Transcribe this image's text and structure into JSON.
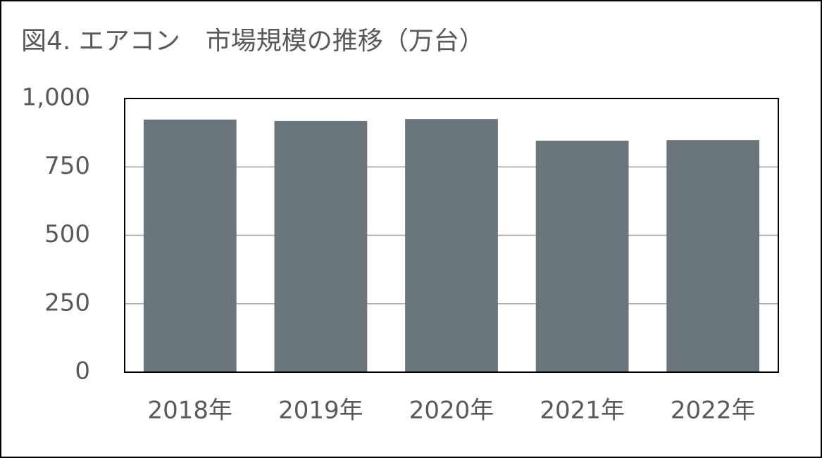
{
  "chart_data": {
    "type": "bar",
    "title": "図4. エアコン　市場規模の推移（万台）",
    "categories": [
      "2018年",
      "2019年",
      "2020年",
      "2021年",
      "2022年"
    ],
    "values": [
      923,
      918,
      925,
      846,
      848
    ],
    "color": "#6b757c",
    "ylim": [
      0,
      1000
    ],
    "yticks": [
      0,
      250,
      500,
      750,
      {
        "value": 1000,
        "label": "1,000"
      }
    ],
    "grid": true
  }
}
